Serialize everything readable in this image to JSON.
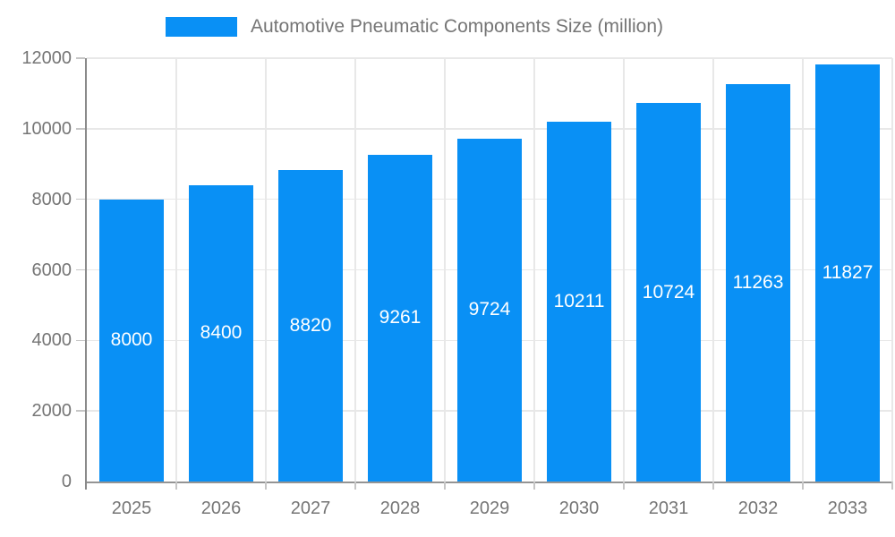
{
  "chart_data": {
    "type": "bar",
    "title": "Automotive Pneumatic Components Size (million)",
    "categories": [
      "2025",
      "2026",
      "2027",
      "2028",
      "2029",
      "2030",
      "2031",
      "2032",
      "2033"
    ],
    "values": [
      8000,
      8400,
      8820,
      9261,
      9724,
      10211,
      10724,
      11263,
      11827
    ],
    "series": [
      {
        "name": "Automotive Pneumatic Components Size (million)",
        "values": [
          8000,
          8400,
          8820,
          9261,
          9724,
          10211,
          10724,
          11263,
          11827
        ]
      }
    ],
    "xlabel": "",
    "ylabel": "",
    "ylim": [
      0,
      12000
    ],
    "yticks": [
      0,
      2000,
      4000,
      6000,
      8000,
      10000,
      12000
    ],
    "grid": true,
    "legend_position": "top",
    "bar_labels_visible": true,
    "colors": {
      "bar": "#0990f5",
      "bar_label": "#ffffff",
      "axis_text": "#757575",
      "legend_text": "#757575",
      "gridline": "#e8e8e8",
      "axis_line": "#8a8a8a",
      "tick": "#c6c6c6",
      "background": "#ffffff"
    }
  },
  "legend": {
    "label": "Automotive Pneumatic Components Size (million)"
  }
}
